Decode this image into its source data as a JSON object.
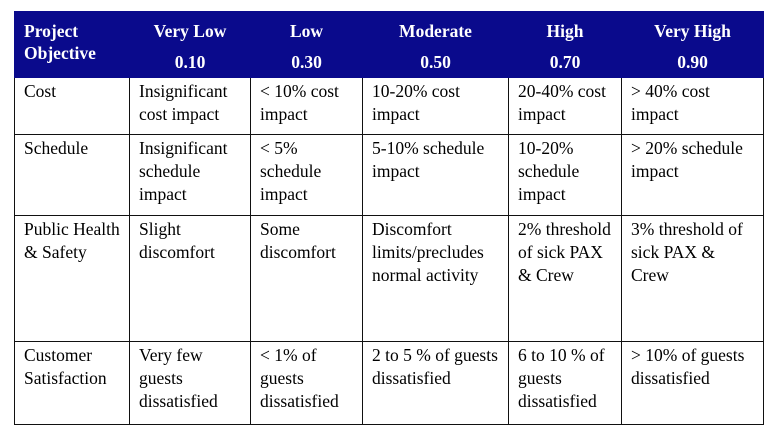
{
  "table": {
    "header": {
      "objective_label": "Project Objective",
      "levels": [
        {
          "name": "Very Low",
          "value": "0.10"
        },
        {
          "name": "Low",
          "value": "0.30"
        },
        {
          "name": "Moderate",
          "value": "0.50"
        },
        {
          "name": "High",
          "value": "0.70"
        },
        {
          "name": "Very High",
          "value": "0.90"
        }
      ]
    },
    "rows": [
      {
        "objective": "Cost",
        "cells": [
          "Insignificant cost impact",
          "< 10% cost impact",
          "10-20% cost impact",
          "20-40% cost impact",
          "> 40% cost impact"
        ]
      },
      {
        "objective": "Schedule",
        "cells": [
          "Insignificant schedule impact",
          "< 5% schedule impact",
          "5-10% schedule impact",
          "10-20% schedule impact",
          "> 20% schedule impact"
        ]
      },
      {
        "objective": "Public Health & Safety",
        "cells": [
          "Slight discomfort",
          "Some discomfort",
          "Discomfort limits/precludes normal activity",
          "2% threshold of sick PAX & Crew",
          "3% threshold of sick PAX & Crew"
        ]
      },
      {
        "objective": "Customer Satisfaction",
        "cells": [
          "Very few guests dissatisfied",
          "< 1% of guests dissatisfied",
          "2 to 5 % of guests dissatisfied",
          "6 to 10 % of guests dissatisfied",
          "> 10% of guests dissatisfied"
        ]
      }
    ]
  }
}
